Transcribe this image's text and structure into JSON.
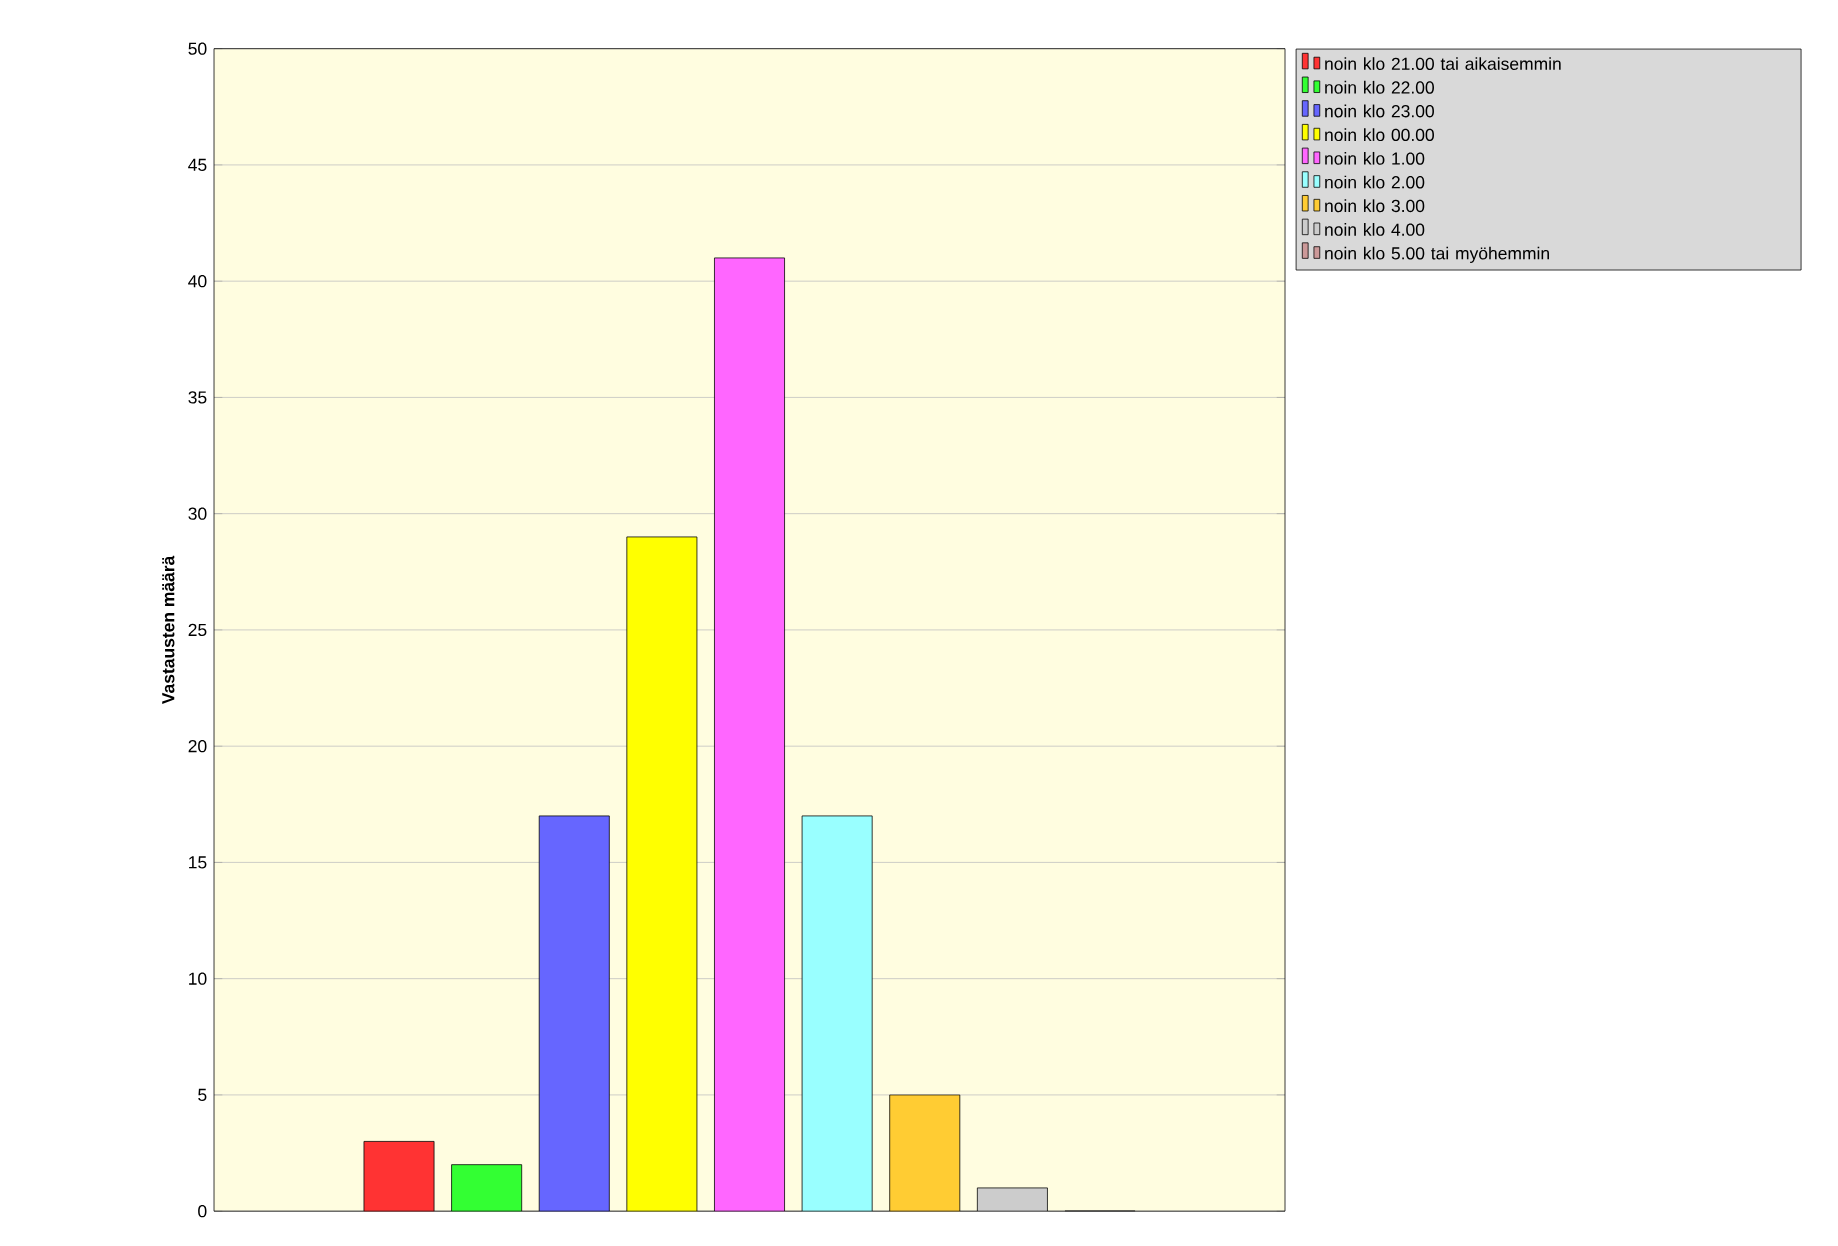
{
  "chart_data": {
    "type": "bar",
    "ylabel": "Vastausten määrä",
    "categories": [
      null
    ],
    "series": [
      {
        "name": "noin klo 21.00 tai aikaisemmin",
        "color": "#ff3333",
        "values": [
          3
        ]
      },
      {
        "name": "noin klo 22.00",
        "color": "#33ff33",
        "values": [
          2
        ]
      },
      {
        "name": "noin klo 23.00",
        "color": "#6666ff",
        "values": [
          17
        ]
      },
      {
        "name": "noin klo 00.00",
        "color": "#ffff00",
        "values": [
          29
        ]
      },
      {
        "name": "noin klo 1.00",
        "color": "#ff66ff",
        "values": [
          41
        ]
      },
      {
        "name": "noin klo 2.00",
        "color": "#99ffff",
        "values": [
          17
        ]
      },
      {
        "name": "noin klo 3.00",
        "color": "#ffcc33",
        "values": [
          5
        ]
      },
      {
        "name": "noin klo 4.00",
        "color": "#cccccc",
        "values": [
          1
        ]
      },
      {
        "name": "noin klo 5.00 tai myöhemmin",
        "color": "#cc9999",
        "values": [
          0
        ]
      }
    ],
    "ylim": [
      0,
      50
    ],
    "yticks": [
      0,
      5,
      10,
      15,
      20,
      25,
      30,
      35,
      40,
      45,
      50
    ],
    "grid": "y",
    "legend": "top right"
  }
}
